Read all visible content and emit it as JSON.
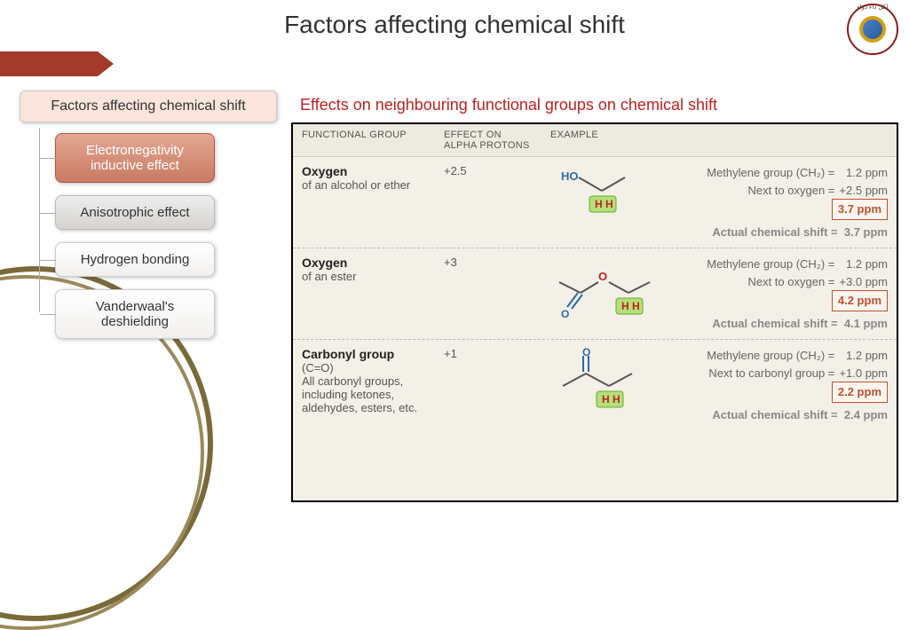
{
  "title": "Factors affecting chemical shift",
  "subtitle": "Effects on neighbouring functional groups on chemical shift",
  "logo_border": "#8a1e1a",
  "accent_color": "#a33a2a",
  "tree": {
    "root": "Factors affecting chemical shift",
    "nodes": [
      {
        "label": "Electronegativity inductive effect",
        "style": "selected"
      },
      {
        "label": "Anisotrophic effect",
        "style": "alt"
      },
      {
        "label": "Hydrogen bonding",
        "style": "alt2"
      },
      {
        "label": "Vanderwaal's deshielding",
        "style": "alt2"
      }
    ]
  },
  "table": {
    "headers": [
      "FUNCTIONAL GROUP",
      "EFFECT ON ALPHA PROTONS",
      "EXAMPLE"
    ],
    "rows": [
      {
        "name_bold": "Oxygen",
        "name_rest": "of an alcohol or ether",
        "effect": "+2.5",
        "calc": {
          "l1a": "Methylene group (CH₂) =",
          "l1b": "1.2 ppm",
          "l2a": "Next to oxygen =",
          "l2b": "+2.5 ppm",
          "boxed": "3.7 ppm",
          "actual_a": "Actual chemical shift =",
          "actual_b": "3.7 ppm"
        },
        "mol_svg_h": 70
      },
      {
        "name_bold": "Oxygen",
        "name_rest": "of an ester",
        "effect": "+3",
        "calc": {
          "l1a": "Methylene group (CH₂) =",
          "l1b": "1.2 ppm",
          "l2a": "Next to oxygen =",
          "l2b": "+3.0 ppm",
          "boxed": "4.2 ppm",
          "actual_a": "Actual chemical shift =",
          "actual_b": "4.1 ppm"
        },
        "mol_svg_h": 80
      },
      {
        "name_bold": "Carbonyl group",
        "name_rest": "(C=O)\nAll carbonyl groups, including ketones, aldehydes, esters, etc.",
        "effect": "+1",
        "calc": {
          "l1a": "Methylene group (CH₂) =",
          "l1b": "1.2 ppm",
          "l2a": "Next to carbonyl group =",
          "l2b": "+1.0 ppm",
          "boxed": "2.2 ppm",
          "actual_a": "Actual chemical shift =",
          "actual_b": "2.4 ppm"
        },
        "mol_svg_h": 80
      }
    ],
    "colors": {
      "bg": "#f3f0e7",
      "header_bg": "#edeadf",
      "mol_H_box_fill": "#b4e07a",
      "mol_H_box_stroke": "#6aaa2a",
      "mol_H_text": "#c02020",
      "mol_O_text": "#c02020",
      "mol_HO_text": "#2a6ab0",
      "mol_dblO_text": "#2a6ab0",
      "mol_line": "#555"
    }
  }
}
